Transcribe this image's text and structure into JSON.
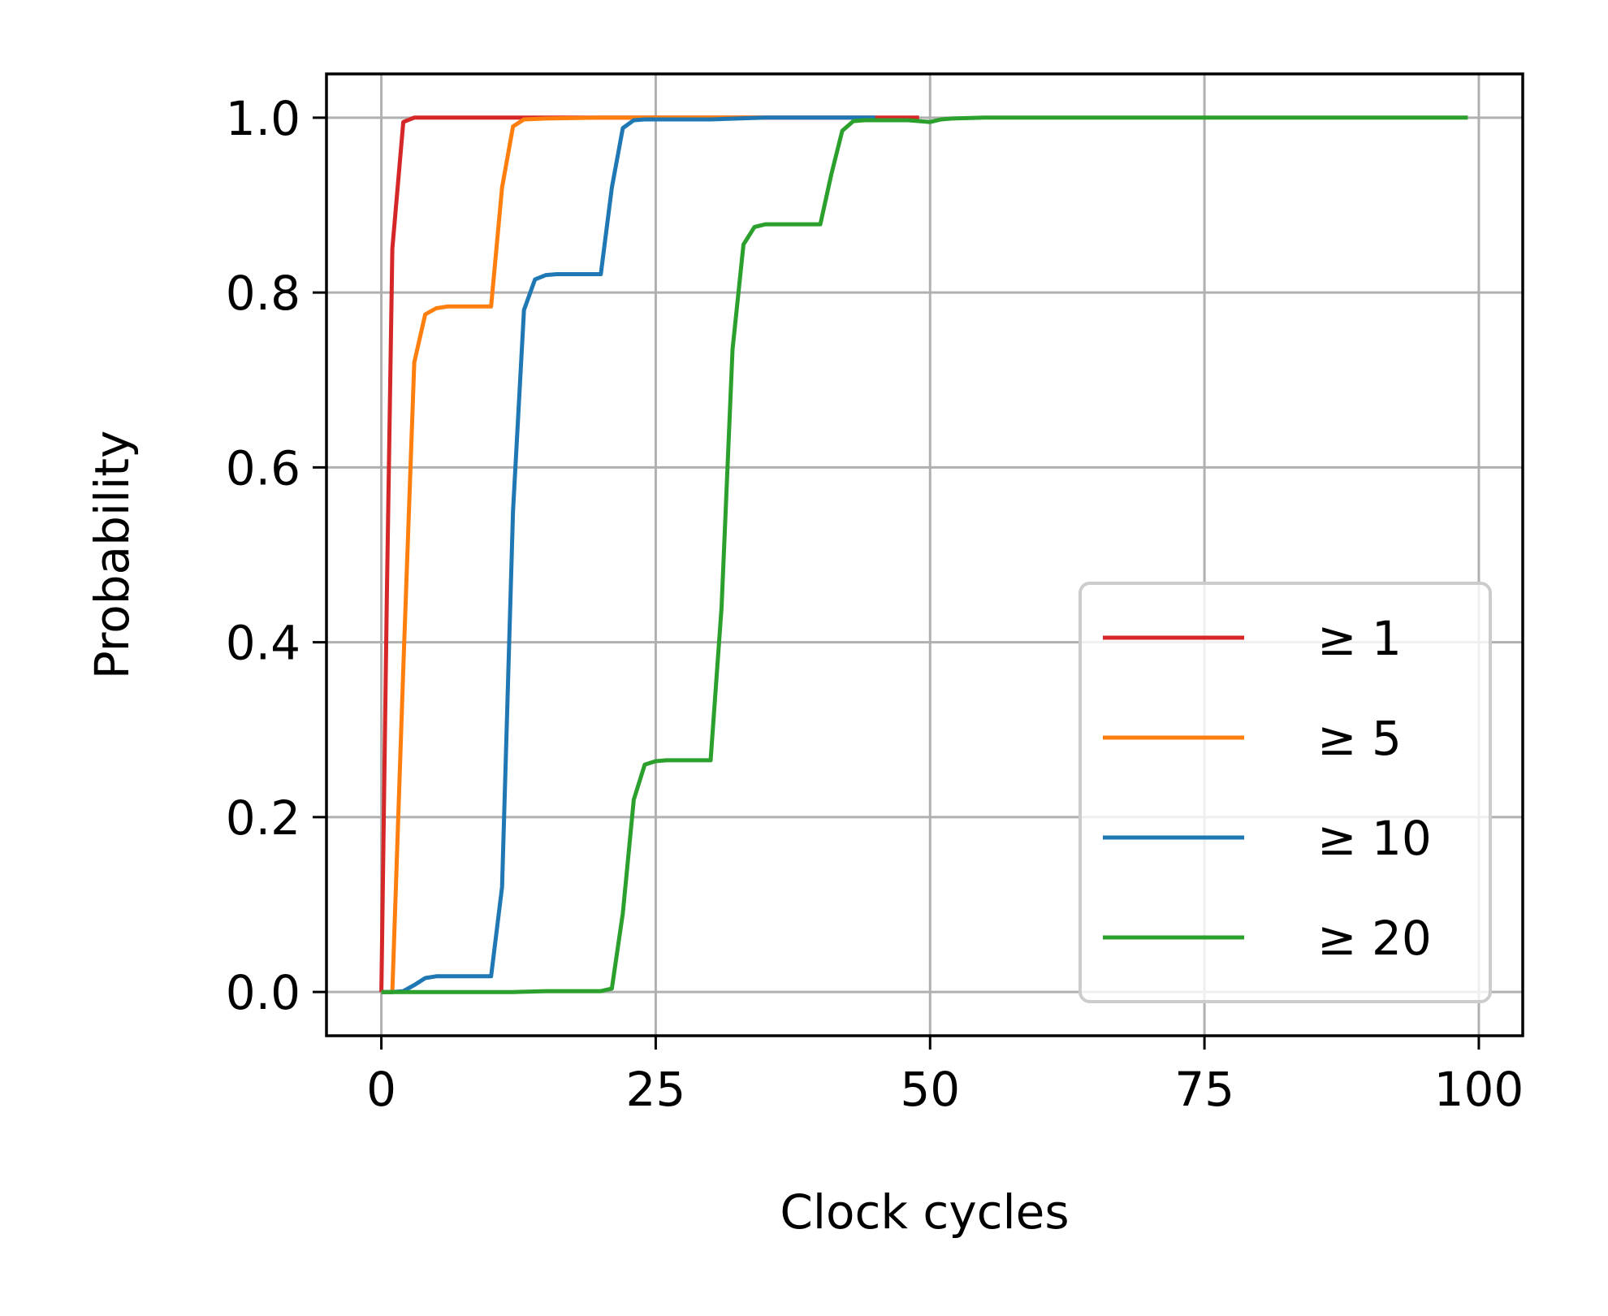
{
  "chart_data": {
    "type": "line",
    "title": "",
    "xlabel": "Clock cycles",
    "ylabel": "Probability",
    "xlim": [
      -5,
      104
    ],
    "ylim": [
      -0.05,
      1.05
    ],
    "xticks": [
      0,
      25,
      50,
      75,
      100
    ],
    "xtick_labels": [
      "0",
      "25",
      "50",
      "75",
      "100"
    ],
    "yticks": [
      0.0,
      0.2,
      0.4,
      0.6,
      0.8,
      1.0
    ],
    "ytick_labels": [
      "0.0",
      "0.2",
      "0.4",
      "0.6",
      "0.8",
      "1.0"
    ],
    "grid": true,
    "legend_position": "lower-right",
    "series": [
      {
        "name": "≥ 1",
        "color": "#d62728",
        "x": [
          0,
          0.5,
          1,
          2,
          3,
          5,
          10,
          20,
          30,
          40,
          49
        ],
        "y": [
          0.0,
          0.45,
          0.85,
          0.995,
          1.0,
          1.0,
          1.0,
          1.0,
          1.0,
          1.0,
          1.0
        ]
      },
      {
        "name": "≥ 5",
        "color": "#ff7f0e",
        "x": [
          0,
          1,
          2,
          3,
          4,
          5,
          6,
          8,
          10,
          11,
          12,
          13,
          15,
          20,
          25,
          30,
          35
        ],
        "y": [
          0.0,
          0.0,
          0.37,
          0.72,
          0.775,
          0.782,
          0.784,
          0.784,
          0.784,
          0.92,
          0.99,
          0.998,
          0.999,
          1.0,
          1.0,
          1.0,
          1.0
        ]
      },
      {
        "name": "≥ 10",
        "color": "#1f77b4",
        "x": [
          0,
          1,
          2,
          3,
          4,
          5,
          6,
          8,
          10,
          11,
          12,
          13,
          14,
          15,
          16,
          18,
          20,
          21,
          22,
          23,
          24,
          26,
          30,
          35,
          40,
          45
        ],
        "y": [
          0.0,
          0.0,
          0.001,
          0.008,
          0.016,
          0.018,
          0.018,
          0.018,
          0.018,
          0.12,
          0.55,
          0.78,
          0.815,
          0.82,
          0.821,
          0.821,
          0.821,
          0.92,
          0.988,
          0.997,
          0.998,
          0.998,
          0.998,
          1.0,
          1.0,
          1.0
        ]
      },
      {
        "name": "≥ 20",
        "color": "#2ca02c",
        "x": [
          0,
          5,
          10,
          12,
          15,
          18,
          20,
          21,
          22,
          23,
          24,
          25,
          26,
          28,
          30,
          31,
          32,
          33,
          34,
          35,
          36,
          38,
          40,
          41,
          42,
          43,
          44,
          46,
          48,
          50,
          51,
          52,
          55,
          60,
          70,
          80,
          90,
          99
        ],
        "y": [
          0.0,
          0.0,
          0.0,
          0.0,
          0.001,
          0.001,
          0.001,
          0.004,
          0.09,
          0.22,
          0.26,
          0.264,
          0.265,
          0.265,
          0.265,
          0.44,
          0.735,
          0.855,
          0.875,
          0.878,
          0.878,
          0.878,
          0.878,
          0.935,
          0.985,
          0.996,
          0.997,
          0.997,
          0.997,
          0.995,
          0.998,
          0.999,
          1.0,
          1.0,
          1.0,
          1.0,
          1.0,
          1.0
        ]
      }
    ]
  }
}
